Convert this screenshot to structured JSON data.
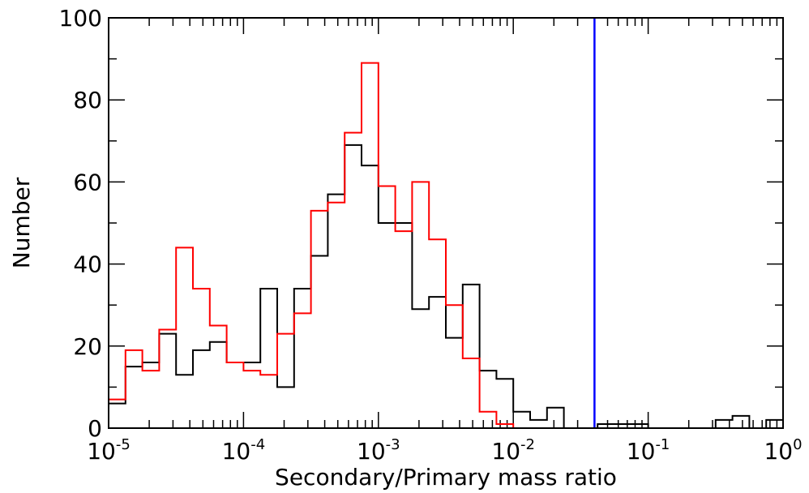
{
  "chart_data": {
    "type": "histogram",
    "xlabel": "Secondary/Primary mass ratio",
    "ylabel": "Number",
    "x_scale": "log",
    "xlim": [
      1e-05,
      1
    ],
    "ylim": [
      0,
      100
    ],
    "y_ticks": [
      "0",
      "20",
      "40",
      "60",
      "80",
      "100"
    ],
    "x_ticks": [
      {
        "value": 1e-05,
        "base": "10",
        "exp": "-5"
      },
      {
        "value": 0.0001,
        "base": "10",
        "exp": "-4"
      },
      {
        "value": 0.001,
        "base": "10",
        "exp": "-3"
      },
      {
        "value": 0.01,
        "base": "10",
        "exp": "-2"
      },
      {
        "value": 0.1,
        "base": "10",
        "exp": "-1"
      },
      {
        "value": 1,
        "base": "10",
        "exp": "0"
      }
    ],
    "bin_log10_start": -5.0,
    "bin_log10_width": 0.125,
    "series": [
      {
        "color": "#000000",
        "values": [
          6,
          15,
          16,
          23,
          13,
          19,
          21,
          16,
          16,
          34,
          10,
          34,
          42,
          57,
          69,
          64,
          50,
          50,
          29,
          32,
          22,
          35,
          14,
          12,
          4,
          2,
          5,
          0,
          0,
          1,
          1,
          1,
          0,
          0,
          0,
          0,
          2,
          3,
          0,
          2
        ]
      },
      {
        "color": "#ff0000",
        "values": [
          7,
          19,
          14,
          24,
          44,
          34,
          25,
          16,
          14,
          13,
          23,
          28,
          53,
          55,
          72,
          89,
          59,
          48,
          60,
          46,
          30,
          17,
          4,
          1,
          0,
          0,
          0,
          0,
          0,
          0,
          0,
          0,
          0,
          0,
          0,
          0,
          0,
          0,
          0,
          0
        ]
      }
    ],
    "vertical_line": {
      "x": 0.04,
      "color": "#0000ff"
    }
  }
}
